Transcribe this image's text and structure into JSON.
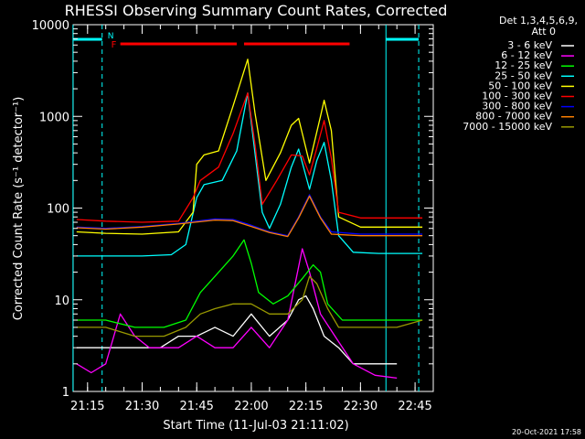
{
  "chart_data": {
    "type": "line",
    "title": "RHESSI Observing Summary Count Rates, Corrected",
    "xlabel": "Start Time (11-Jul-03 21:11:02)",
    "ylabel": "Corrected Count Rate (s⁻¹ detector⁻¹)",
    "yscale": "log",
    "ylim": [
      1,
      10000
    ],
    "xlim": [
      "21:11:02",
      "22:50:00"
    ],
    "x_tick_labels": [
      "21:15",
      "21:30",
      "21:45",
      "22:00",
      "22:15",
      "22:30",
      "22:45"
    ],
    "y_tick_labels": [
      "1",
      "10",
      "100",
      "1000",
      "10000"
    ],
    "background": "#000000",
    "grid": false,
    "legend_title": "Det 1,3,4,5,6,9,",
    "legend_subtitle": "Att 0",
    "legend_position": "right",
    "series": [
      {
        "name": "3 - 6 keV",
        "color": "#ffffff",
        "points": [
          [
            "21:12",
            3
          ],
          [
            "21:20",
            3
          ],
          [
            "21:25",
            3
          ],
          [
            "21:30",
            3
          ],
          [
            "21:35",
            3
          ],
          [
            "21:40",
            4
          ],
          [
            "21:45",
            4
          ],
          [
            "21:50",
            5
          ],
          [
            "21:55",
            4
          ],
          [
            "22:00",
            7
          ],
          [
            "22:05",
            4
          ],
          [
            "22:10",
            6
          ],
          [
            "22:13",
            10
          ],
          [
            "22:15",
            11
          ],
          [
            "22:17",
            8
          ],
          [
            "22:20",
            4
          ],
          [
            "22:24",
            3
          ],
          [
            "22:28",
            2
          ],
          [
            "22:35",
            2
          ],
          [
            "22:40",
            2
          ]
        ]
      },
      {
        "name": "6 - 12 keV",
        "color": "#ff00ff",
        "points": [
          [
            "21:12",
            2
          ],
          [
            "21:16",
            1.6
          ],
          [
            "21:20",
            2
          ],
          [
            "21:24",
            7
          ],
          [
            "21:28",
            4
          ],
          [
            "21:32",
            3
          ],
          [
            "21:36",
            3
          ],
          [
            "21:40",
            3
          ],
          [
            "21:45",
            4
          ],
          [
            "21:50",
            3
          ],
          [
            "21:55",
            3
          ],
          [
            "22:00",
            5
          ],
          [
            "22:05",
            3
          ],
          [
            "22:10",
            6
          ],
          [
            "22:14",
            36
          ],
          [
            "22:16",
            20
          ],
          [
            "22:19",
            7
          ],
          [
            "22:23",
            4
          ],
          [
            "22:28",
            2
          ],
          [
            "22:34",
            1.5
          ],
          [
            "22:40",
            1.4
          ]
        ]
      },
      {
        "name": "12 - 25 keV",
        "color": "#00ff00",
        "points": [
          [
            "21:12",
            6
          ],
          [
            "21:20",
            6
          ],
          [
            "21:28",
            5
          ],
          [
            "21:36",
            5
          ],
          [
            "21:42",
            6
          ],
          [
            "21:46",
            12
          ],
          [
            "21:50",
            18
          ],
          [
            "21:55",
            30
          ],
          [
            "21:58",
            45
          ],
          [
            "22:00",
            25
          ],
          [
            "22:02",
            12
          ],
          [
            "22:06",
            9
          ],
          [
            "22:10",
            11
          ],
          [
            "22:14",
            17
          ],
          [
            "22:17",
            24
          ],
          [
            "22:19",
            20
          ],
          [
            "22:21",
            9
          ],
          [
            "22:25",
            6
          ],
          [
            "22:30",
            6
          ],
          [
            "22:40",
            6
          ],
          [
            "22:47",
            6
          ]
        ]
      },
      {
        "name": "25 - 50 keV",
        "color": "#00ffff",
        "points": [
          [
            "21:12",
            30
          ],
          [
            "21:20",
            30
          ],
          [
            "21:30",
            30
          ],
          [
            "21:38",
            31
          ],
          [
            "21:42",
            40
          ],
          [
            "21:45",
            130
          ],
          [
            "21:47",
            180
          ],
          [
            "21:52",
            200
          ],
          [
            "21:56",
            420
          ],
          [
            "21:59",
            1800
          ],
          [
            "22:01",
            400
          ],
          [
            "22:03",
            90
          ],
          [
            "22:05",
            60
          ],
          [
            "22:08",
            110
          ],
          [
            "22:11",
            280
          ],
          [
            "22:13",
            440
          ],
          [
            "22:16",
            160
          ],
          [
            "22:18",
            330
          ],
          [
            "22:20",
            520
          ],
          [
            "22:22",
            200
          ],
          [
            "22:24",
            50
          ],
          [
            "22:28",
            33
          ],
          [
            "22:35",
            32
          ],
          [
            "22:40",
            32
          ],
          [
            "22:47",
            32
          ]
        ]
      },
      {
        "name": "50 - 100 keV",
        "color": "#ffff00",
        "points": [
          [
            "21:12",
            55
          ],
          [
            "21:20",
            53
          ],
          [
            "21:30",
            52
          ],
          [
            "21:40",
            55
          ],
          [
            "21:44",
            90
          ],
          [
            "21:45",
            300
          ],
          [
            "21:47",
            380
          ],
          [
            "21:51",
            420
          ],
          [
            "21:55",
            1300
          ],
          [
            "21:59",
            4200
          ],
          [
            "22:01",
            1100
          ],
          [
            "22:04",
            200
          ],
          [
            "22:08",
            400
          ],
          [
            "22:11",
            800
          ],
          [
            "22:13",
            950
          ],
          [
            "22:16",
            310
          ],
          [
            "22:19",
            1000
          ],
          [
            "22:20",
            1500
          ],
          [
            "22:22",
            700
          ],
          [
            "22:24",
            80
          ],
          [
            "22:30",
            62
          ],
          [
            "22:40",
            62
          ],
          [
            "22:47",
            62
          ]
        ]
      },
      {
        "name": "100 - 300 keV",
        "color": "#ff0000",
        "points": [
          [
            "21:12",
            75
          ],
          [
            "21:20",
            72
          ],
          [
            "21:30",
            70
          ],
          [
            "21:40",
            72
          ],
          [
            "21:44",
            130
          ],
          [
            "21:46",
            200
          ],
          [
            "21:51",
            280
          ],
          [
            "21:55",
            650
          ],
          [
            "21:59",
            1800
          ],
          [
            "22:01",
            500
          ],
          [
            "22:03",
            110
          ],
          [
            "22:07",
            200
          ],
          [
            "22:11",
            380
          ],
          [
            "22:14",
            370
          ],
          [
            "22:16",
            230
          ],
          [
            "22:18",
            450
          ],
          [
            "22:20",
            900
          ],
          [
            "22:22",
            350
          ],
          [
            "22:24",
            90
          ],
          [
            "22:30",
            78
          ],
          [
            "22:40",
            78
          ],
          [
            "22:47",
            78
          ]
        ]
      },
      {
        "name": "300 - 800 keV",
        "color": "#0000ff",
        "points": [
          [
            "21:12",
            62
          ],
          [
            "21:20",
            60
          ],
          [
            "21:30",
            63
          ],
          [
            "21:40",
            68
          ],
          [
            "21:50",
            76
          ],
          [
            "21:55",
            75
          ],
          [
            "22:00",
            65
          ],
          [
            "22:05",
            55
          ],
          [
            "22:10",
            50
          ],
          [
            "22:13",
            80
          ],
          [
            "22:16",
            140
          ],
          [
            "22:19",
            80
          ],
          [
            "22:22",
            55
          ],
          [
            "22:30",
            52
          ],
          [
            "22:40",
            52
          ],
          [
            "22:47",
            52
          ]
        ]
      },
      {
        "name": "800 - 7000 keV",
        "color": "#ff8000",
        "points": [
          [
            "21:12",
            61
          ],
          [
            "21:20",
            59
          ],
          [
            "21:30",
            62
          ],
          [
            "21:40",
            67
          ],
          [
            "21:50",
            74
          ],
          [
            "21:55",
            73
          ],
          [
            "22:00",
            63
          ],
          [
            "22:05",
            54
          ],
          [
            "22:10",
            49
          ],
          [
            "22:13",
            78
          ],
          [
            "22:16",
            135
          ],
          [
            "22:19",
            78
          ],
          [
            "22:22",
            52
          ],
          [
            "22:30",
            50
          ],
          [
            "22:40",
            50
          ],
          [
            "22:47",
            50
          ]
        ]
      },
      {
        "name": "7000 - 15000 keV",
        "color": "#999900",
        "points": [
          [
            "21:12",
            5
          ],
          [
            "21:20",
            5
          ],
          [
            "21:28",
            4
          ],
          [
            "21:36",
            4
          ],
          [
            "21:42",
            5
          ],
          [
            "21:46",
            7
          ],
          [
            "21:50",
            8
          ],
          [
            "21:55",
            9
          ],
          [
            "22:00",
            9
          ],
          [
            "22:05",
            7
          ],
          [
            "22:10",
            7
          ],
          [
            "22:14",
            10
          ],
          [
            "22:16",
            18
          ],
          [
            "22:18",
            15
          ],
          [
            "22:21",
            8
          ],
          [
            "22:24",
            5
          ],
          [
            "22:30",
            5
          ],
          [
            "22:40",
            5
          ],
          [
            "22:47",
            6
          ]
        ]
      }
    ],
    "annotations": {
      "flags": [
        {
          "label": "N",
          "color": "#00ffff"
        },
        {
          "label": "F",
          "color": "#ff0000"
        }
      ],
      "night_intervals": [
        [
          "21:11",
          "21:19"
        ],
        [
          "22:37",
          "22:46"
        ]
      ],
      "flare_intervals": [
        [
          "21:24",
          "21:56"
        ],
        [
          "21:58",
          "22:27"
        ]
      ]
    }
  },
  "footer": {
    "date_stamp": "20-Oct-2021 17:58"
  }
}
